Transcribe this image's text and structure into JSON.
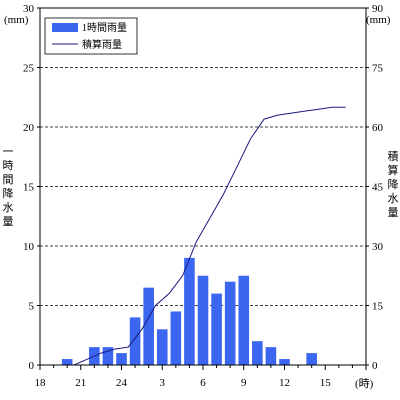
{
  "chart_data": {
    "type": "bar",
    "left_axis": {
      "unit_label": "(mm)",
      "label_chars": [
        "一",
        "時",
        "間",
        "降",
        "水",
        "量"
      ],
      "ylim": [
        0,
        30
      ],
      "ticks": [
        0,
        5,
        10,
        15,
        20,
        25,
        30
      ]
    },
    "right_axis": {
      "unit_label": "(mm)",
      "label_chars": [
        "積",
        "算",
        "降",
        "水",
        "量"
      ],
      "ylim": [
        0,
        90
      ],
      "ticks": [
        0,
        15,
        30,
        45,
        60,
        75,
        90
      ]
    },
    "x_axis": {
      "unit_label": "(時)",
      "ticks": [
        {
          "hour_index": 0,
          "label": "18"
        },
        {
          "hour_index": 3,
          "label": "21"
        },
        {
          "hour_index": 6,
          "label": "24"
        },
        {
          "hour_index": 9,
          "label": "3"
        },
        {
          "hour_index": 12,
          "label": "6"
        },
        {
          "hour_index": 15,
          "label": "9"
        },
        {
          "hour_index": 18,
          "label": "12"
        },
        {
          "hour_index": 21,
          "label": "15"
        },
        {
          "hour_index": 24,
          "label": ""
        }
      ]
    },
    "grid": "dashed horizontal",
    "legend_position": "top-left",
    "series": [
      {
        "name": "1時間雨量",
        "kind": "bar",
        "axis": "left",
        "color": "#3a66f0",
        "values": [
          0,
          0.5,
          0,
          1.5,
          1.5,
          1,
          4,
          6.5,
          3,
          4.5,
          9,
          7.5,
          6,
          7,
          7.5,
          2,
          1.5,
          0.5,
          0,
          1,
          0,
          0
        ]
      },
      {
        "name": "積算雨量",
        "kind": "line",
        "axis": "right",
        "color": "#1a1a80",
        "points": [
          [
            0,
            0
          ],
          [
            2,
            0
          ],
          [
            3,
            1.5
          ],
          [
            4,
            3
          ],
          [
            5,
            4
          ],
          [
            6,
            4.5
          ],
          [
            7,
            9
          ],
          [
            8,
            15
          ],
          [
            9,
            18
          ],
          [
            10,
            22.5
          ],
          [
            11,
            31
          ],
          [
            12,
            37
          ],
          [
            13,
            43
          ],
          [
            14,
            50
          ],
          [
            15,
            57
          ],
          [
            16,
            62
          ],
          [
            17,
            63
          ],
          [
            18,
            63.5
          ],
          [
            19,
            64
          ],
          [
            20,
            64.5
          ],
          [
            21,
            65
          ],
          [
            22,
            65
          ]
        ]
      }
    ]
  }
}
